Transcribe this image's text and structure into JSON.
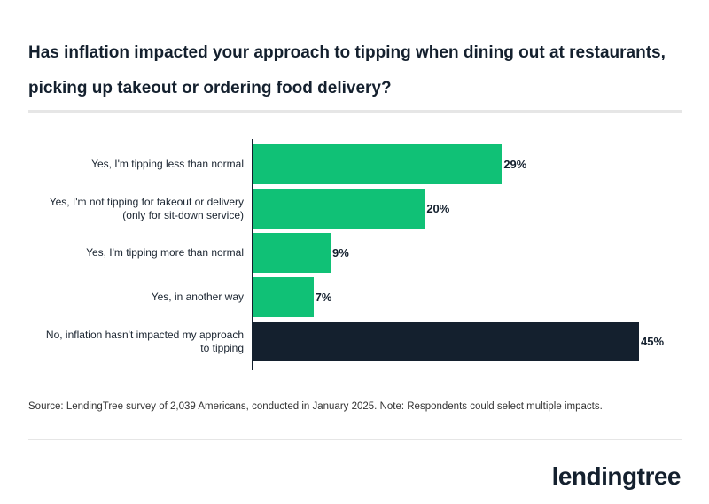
{
  "chart_data": {
    "type": "hbar",
    "title": "Has inflation impacted your approach to tipping when dining out at restaurants, picking up takeout or ordering food delivery?",
    "categories": [
      "Yes, I'm tipping less than normal",
      "Yes, I'm not tipping for takeout or delivery\n(only for sit-down service)",
      "Yes, I'm tipping more than normal",
      "Yes, in another way",
      "No, inflation hasn't impacted my approach\nto tipping"
    ],
    "values": [
      29,
      20,
      9,
      7,
      45
    ],
    "value_labels": [
      "29%",
      "20%",
      "9%",
      "7%",
      "45%"
    ],
    "colors": [
      "#10c176",
      "#10c176",
      "#10c176",
      "#10c176",
      "#14202e"
    ],
    "xlim": [
      0,
      45
    ],
    "source": "Source: LendingTree survey of 2,039 Americans, conducted in January 2025. Note: Respondents could select multiple impacts.",
    "logo": "lendingtree"
  }
}
